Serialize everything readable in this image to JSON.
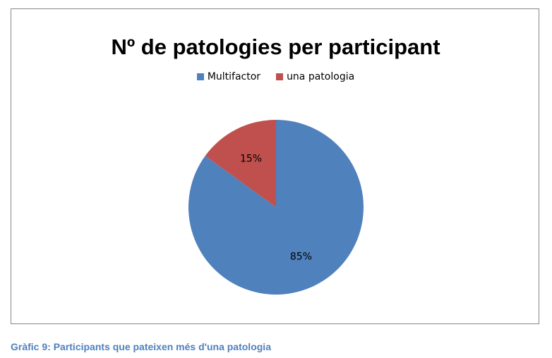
{
  "chart_data": {
    "type": "pie",
    "title": "Nº de patologies per participant",
    "legend_placement": "top",
    "categories": [
      "Multifactor",
      "una patologia"
    ],
    "values": [
      85,
      15
    ],
    "labels": [
      "85%",
      "15%"
    ],
    "colors": [
      "#4f81bd",
      "#c0504d"
    ],
    "start_angle_deg": 0,
    "direction": "clockwise"
  },
  "caption": "Gràfic 9: Participants que pateixen més d'una patologia"
}
